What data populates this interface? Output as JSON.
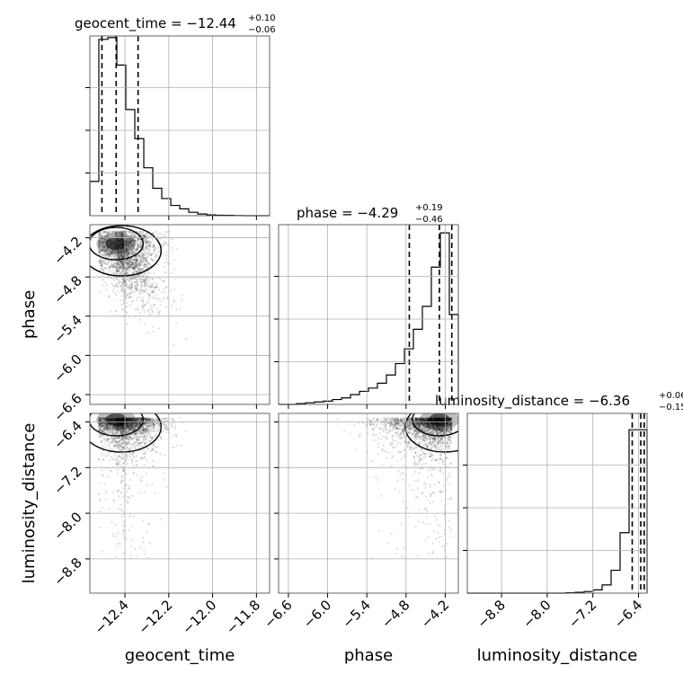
{
  "chart_data": {
    "type": "corner",
    "parameters": [
      {
        "name": "geocent_time",
        "title_text": "geocent_time = −12.44",
        "title_sup": "+0.10",
        "title_sub": "−0.06",
        "range": [
          -12.56,
          -11.74
        ],
        "ticks": [
          -12.4,
          -12.2,
          -12.0,
          -11.8
        ],
        "tick_labels": [
          "−12.4",
          "−12.2",
          "−12.0",
          "−11.8"
        ],
        "quantiles": [
          -12.505,
          -12.44,
          -12.34
        ],
        "hist_max": 1.05,
        "hist": [
          0.2,
          1.03,
          1.04,
          0.88,
          0.62,
          0.45,
          0.28,
          0.16,
          0.1,
          0.06,
          0.04,
          0.02,
          0.01,
          0.005,
          0.003,
          0.002,
          0.001,
          0.0,
          0.0,
          0.0
        ]
      },
      {
        "name": "phase",
        "title_text": "phase = −4.29",
        "title_sup": "+0.19",
        "title_sub": "−0.46",
        "range": [
          -6.75,
          -4.0
        ],
        "ticks": [
          -6.6,
          -6.0,
          -5.4,
          -4.8,
          -4.2
        ],
        "tick_labels": [
          "−6.6",
          "−6.0",
          "−5.4",
          "−4.8",
          "−4.2"
        ],
        "quantiles": [
          -4.75,
          -4.29,
          -4.1
        ],
        "hist_max": 1.1,
        "hist": [
          0.0,
          0.0,
          0.005,
          0.01,
          0.015,
          0.02,
          0.03,
          0.04,
          0.06,
          0.08,
          0.1,
          0.13,
          0.18,
          0.25,
          0.34,
          0.46,
          0.6,
          0.84,
          1.05,
          0.55
        ]
      },
      {
        "name": "luminosity_distance",
        "title_text": "luminosity_distance = −6.36",
        "title_sup": "+0.06",
        "title_sub": "−0.15",
        "range": [
          -9.4,
          -6.25
        ],
        "ticks": [
          -8.8,
          -8.0,
          -7.2,
          -6.4
        ],
        "tick_labels": [
          "−8.8",
          "−8.0",
          "−7.2",
          "−6.4"
        ],
        "quantiles": [
          -6.51,
          -6.36,
          -6.3
        ],
        "hist_max": 1.1,
        "hist": [
          0.0,
          0.0,
          0.0,
          0.0,
          0.0,
          0.0,
          0.0,
          0.0,
          0.0,
          0.0,
          0.0,
          0.002,
          0.005,
          0.01,
          0.02,
          0.05,
          0.14,
          0.37,
          1.0,
          1.0
        ]
      }
    ],
    "density_colormap": "greys",
    "grid": true
  }
}
